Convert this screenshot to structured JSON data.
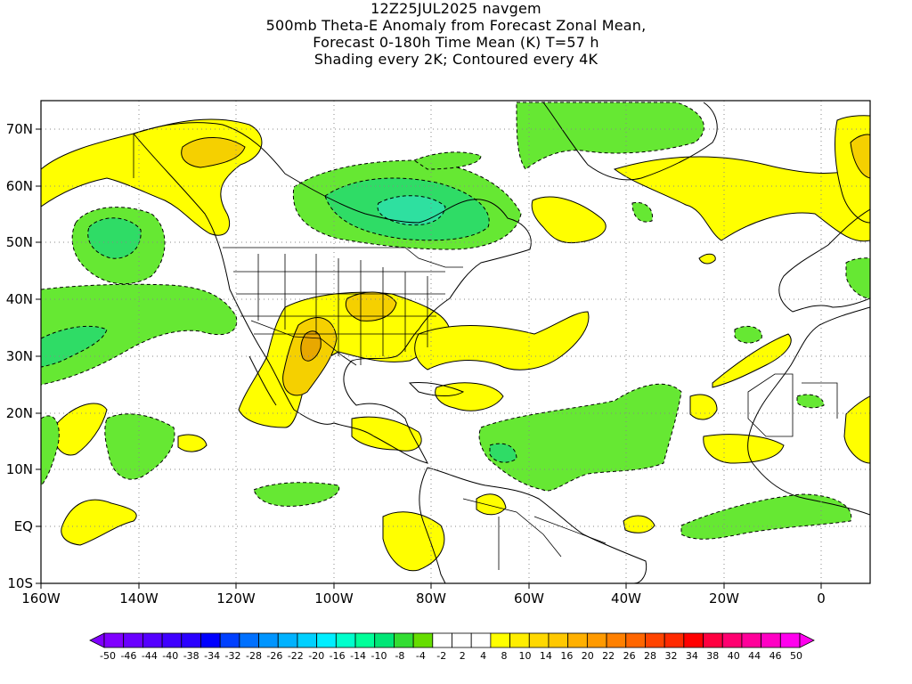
{
  "title": {
    "line1": "12Z25JUL2025 navgem",
    "line2": "500mb Theta-E Anomaly from Forecast Zonal Mean,",
    "line3": "Forecast 0-180h Time Mean (K) T=57 h",
    "line4": "Shading every 2K; Contoured every 4K"
  },
  "axes": {
    "lat_labels": [
      "70N",
      "60N",
      "50N",
      "40N",
      "30N",
      "20N",
      "10N",
      "EQ",
      "10S"
    ],
    "lon_labels": [
      "160W",
      "140W",
      "120W",
      "100W",
      "80W",
      "60W",
      "40W",
      "20W",
      "0"
    ]
  },
  "colorbar": {
    "labels": [
      "-50",
      "-46",
      "-44",
      "-40",
      "-38",
      "-34",
      "-32",
      "-28",
      "-26",
      "-22",
      "-20",
      "-16",
      "-14",
      "-10",
      "-8",
      "-4",
      "-2",
      "2",
      "4",
      "8",
      "10",
      "14",
      "16",
      "20",
      "22",
      "26",
      "28",
      "32",
      "34",
      "38",
      "40",
      "44",
      "46",
      "50"
    ],
    "colors": [
      "#8000ff",
      "#6a00ff",
      "#5500ff",
      "#3f00ff",
      "#2a00ff",
      "#0000ff",
      "#0040ff",
      "#0070ff",
      "#0095ff",
      "#00b2ff",
      "#00d0ff",
      "#00eeff",
      "#00ffcc",
      "#00ff99",
      "#00e676",
      "#33dd33",
      "#66dd00",
      "#ffffff",
      "#ffffff",
      "#ffffff",
      "#ffff00",
      "#ffee00",
      "#ffd800",
      "#ffc800",
      "#ffb000",
      "#ff9a00",
      "#ff8000",
      "#ff6600",
      "#ff4400",
      "#ff2a00",
      "#ff0000",
      "#ff0040",
      "#ff0070",
      "#ff009a",
      "#ff00c4",
      "#ff00ee"
    ]
  },
  "colors": {
    "positive_2_4": "#ffff00",
    "positive_4_6": "#f5d000",
    "positive_6_8": "#e8a800",
    "negative_2_4": "#66e833",
    "negative_4_6": "#2fdc66",
    "negative_6_8": "#2ee0a0"
  }
}
